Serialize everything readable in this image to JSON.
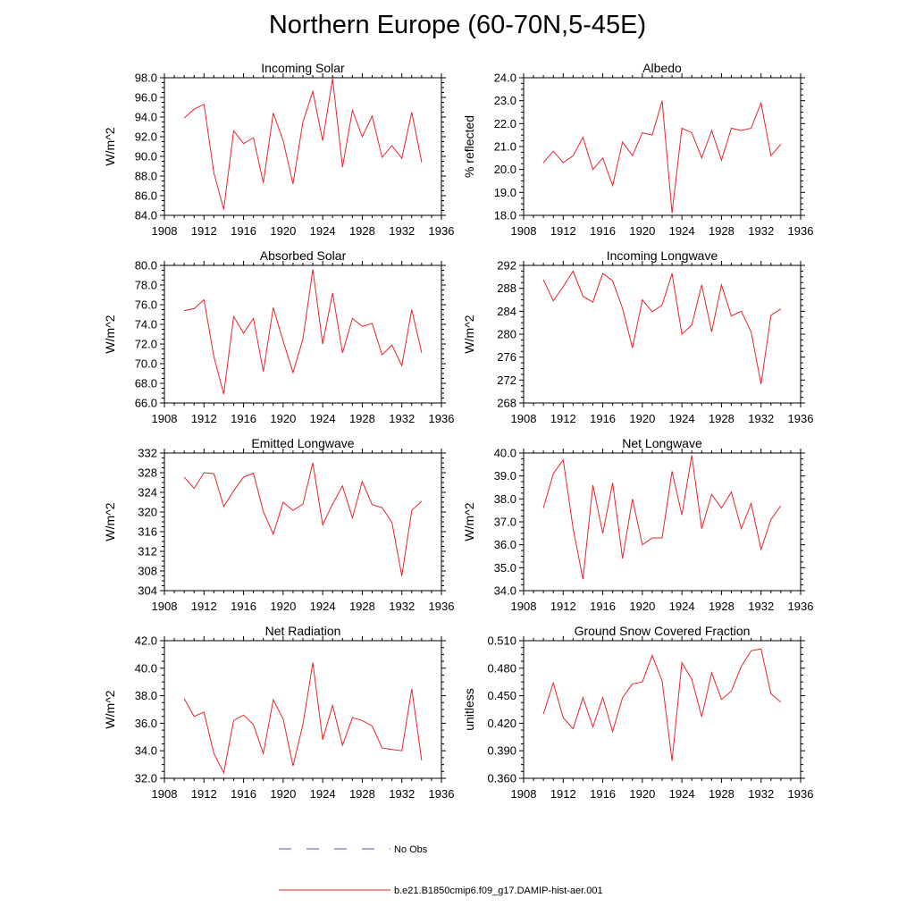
{
  "title": "Northern Europe (60-70N,5-45E)",
  "chart_data": [
    {
      "type": "line",
      "title": "Incoming Solar",
      "ylabel": "W/m^2",
      "xlim": [
        1908,
        1936
      ],
      "ylim": [
        84.0,
        98.0
      ],
      "xticks": [
        "1908",
        "1912",
        "1916",
        "1920",
        "1924",
        "1928",
        "1932",
        "1936"
      ],
      "yticks": [
        "84.0",
        "86.0",
        "88.0",
        "90.0",
        "92.0",
        "94.0",
        "96.0",
        "98.0"
      ],
      "x": [
        1910,
        1911,
        1912,
        1913,
        1914,
        1915,
        1916,
        1917,
        1918,
        1919,
        1920,
        1921,
        1922,
        1923,
        1924,
        1925,
        1926,
        1927,
        1928,
        1929,
        1930,
        1931,
        1932,
        1933,
        1934
      ],
      "series": [
        {
          "values": [
            93.9,
            94.8,
            95.3,
            88.3,
            84.6,
            92.6,
            91.3,
            91.9,
            87.3,
            94.4,
            91.6,
            87.2,
            93.5,
            96.6,
            91.6,
            97.9,
            88.9,
            94.7,
            92.0,
            94.1,
            89.9,
            91.1,
            89.8,
            94.5,
            89.4
          ]
        }
      ]
    },
    {
      "type": "line",
      "title": "Albedo",
      "ylabel": "% reflected",
      "xlim": [
        1908,
        1936
      ],
      "ylim": [
        18.0,
        24.0
      ],
      "xticks": [
        "1908",
        "1912",
        "1916",
        "1920",
        "1924",
        "1928",
        "1932",
        "1936"
      ],
      "yticks": [
        "18.0",
        "19.0",
        "20.0",
        "21.0",
        "22.0",
        "23.0",
        "24.0"
      ],
      "x": [
        1910,
        1911,
        1912,
        1913,
        1914,
        1915,
        1916,
        1917,
        1918,
        1919,
        1920,
        1921,
        1922,
        1923,
        1924,
        1925,
        1926,
        1927,
        1928,
        1929,
        1930,
        1931,
        1932,
        1933,
        1934
      ],
      "series": [
        {
          "values": [
            20.3,
            20.8,
            20.3,
            20.6,
            21.4,
            20.0,
            20.5,
            19.3,
            21.2,
            20.6,
            21.6,
            21.5,
            23.0,
            18.1,
            21.8,
            21.6,
            20.5,
            21.7,
            20.4,
            21.8,
            21.7,
            21.8,
            22.9,
            20.6,
            21.1
          ]
        }
      ]
    },
    {
      "type": "line",
      "title": "Absorbed Solar",
      "ylabel": "W/m^2",
      "xlim": [
        1908,
        1936
      ],
      "ylim": [
        66.0,
        80.0
      ],
      "xticks": [
        "1908",
        "1912",
        "1916",
        "1920",
        "1924",
        "1928",
        "1932",
        "1936"
      ],
      "yticks": [
        "66.0",
        "68.0",
        "70.0",
        "72.0",
        "74.0",
        "76.0",
        "78.0",
        "80.0"
      ],
      "x": [
        1910,
        1911,
        1912,
        1913,
        1914,
        1915,
        1916,
        1917,
        1918,
        1919,
        1920,
        1921,
        1922,
        1923,
        1924,
        1925,
        1926,
        1927,
        1928,
        1929,
        1930,
        1931,
        1932,
        1933,
        1934
      ],
      "series": [
        {
          "values": [
            75.4,
            75.6,
            76.5,
            70.7,
            66.9,
            74.8,
            73.1,
            74.6,
            69.2,
            75.7,
            72.3,
            69.1,
            72.5,
            79.6,
            72.0,
            77.2,
            71.1,
            74.6,
            73.8,
            74.1,
            70.9,
            71.9,
            69.8,
            75.5,
            71.1
          ]
        }
      ]
    },
    {
      "type": "line",
      "title": "Incoming Longwave",
      "ylabel": "W/m^2",
      "xlim": [
        1908,
        1936
      ],
      "ylim": [
        268,
        292
      ],
      "xticks": [
        "1908",
        "1912",
        "1916",
        "1920",
        "1924",
        "1928",
        "1932",
        "1936"
      ],
      "yticks": [
        "268",
        "272",
        "276",
        "280",
        "284",
        "288",
        "292"
      ],
      "x": [
        1910,
        1911,
        1912,
        1913,
        1914,
        1915,
        1916,
        1917,
        1918,
        1919,
        1920,
        1921,
        1922,
        1923,
        1924,
        1925,
        1926,
        1927,
        1928,
        1929,
        1930,
        1931,
        1932,
        1933,
        1934
      ],
      "series": [
        {
          "values": [
            289.5,
            285.8,
            288.3,
            291.0,
            286.6,
            285.6,
            290.6,
            289.3,
            284.5,
            277.6,
            286.0,
            283.9,
            285.1,
            290.6,
            280.0,
            281.6,
            288.6,
            280.4,
            288.6,
            283.2,
            284.0,
            280.4,
            271.3,
            283.3,
            284.4
          ]
        }
      ]
    },
    {
      "type": "line",
      "title": "Emitted Longwave",
      "ylabel": "W/m^2",
      "xlim": [
        1908,
        1936
      ],
      "ylim": [
        304,
        332
      ],
      "xticks": [
        "1908",
        "1912",
        "1916",
        "1920",
        "1924",
        "1928",
        "1932",
        "1936"
      ],
      "yticks": [
        "304",
        "308",
        "312",
        "316",
        "320",
        "324",
        "328",
        "332"
      ],
      "x": [
        1910,
        1911,
        1912,
        1913,
        1914,
        1915,
        1916,
        1917,
        1918,
        1919,
        1920,
        1921,
        1922,
        1923,
        1924,
        1925,
        1926,
        1927,
        1928,
        1929,
        1930,
        1931,
        1932,
        1933,
        1934
      ],
      "series": [
        {
          "values": [
            327.1,
            324.8,
            328.0,
            327.8,
            321.1,
            324.3,
            327.1,
            327.9,
            320.1,
            315.5,
            322.0,
            320.3,
            321.6,
            330.0,
            317.4,
            321.6,
            325.3,
            318.8,
            326.2,
            321.5,
            320.9,
            317.9,
            307.0,
            320.3,
            322.2
          ]
        }
      ]
    },
    {
      "type": "line",
      "title": "Net Longwave",
      "ylabel": "W/m^2",
      "xlim": [
        1908,
        1936
      ],
      "ylim": [
        34.0,
        40.0
      ],
      "xticks": [
        "1908",
        "1912",
        "1916",
        "1920",
        "1924",
        "1928",
        "1932",
        "1936"
      ],
      "yticks": [
        "34.0",
        "35.0",
        "36.0",
        "37.0",
        "38.0",
        "39.0",
        "40.0"
      ],
      "x": [
        1910,
        1911,
        1912,
        1913,
        1914,
        1915,
        1916,
        1917,
        1918,
        1919,
        1920,
        1921,
        1922,
        1923,
        1924,
        1925,
        1926,
        1927,
        1928,
        1929,
        1930,
        1931,
        1932,
        1933,
        1934
      ],
      "series": [
        {
          "values": [
            37.6,
            39.1,
            39.7,
            36.7,
            34.5,
            38.6,
            36.5,
            38.7,
            35.4,
            38.0,
            36.0,
            36.3,
            36.3,
            39.2,
            37.3,
            39.9,
            36.7,
            38.2,
            37.6,
            38.3,
            36.7,
            37.8,
            35.8,
            37.1,
            37.7
          ]
        }
      ]
    },
    {
      "type": "line",
      "title": "Net Radiation",
      "ylabel": "W/m^2",
      "xlim": [
        1908,
        1936
      ],
      "ylim": [
        32.0,
        42.0
      ],
      "xticks": [
        "1908",
        "1912",
        "1916",
        "1920",
        "1924",
        "1928",
        "1932",
        "1936"
      ],
      "yticks": [
        "32.0",
        "34.0",
        "36.0",
        "38.0",
        "40.0",
        "42.0"
      ],
      "x": [
        1910,
        1911,
        1912,
        1913,
        1914,
        1915,
        1916,
        1917,
        1918,
        1919,
        1920,
        1921,
        1922,
        1923,
        1924,
        1925,
        1926,
        1927,
        1928,
        1929,
        1930,
        1931,
        1932,
        1933,
        1934
      ],
      "series": [
        {
          "values": [
            37.8,
            36.5,
            36.8,
            33.8,
            32.4,
            36.2,
            36.6,
            35.9,
            33.8,
            37.7,
            36.3,
            32.9,
            35.9,
            40.4,
            34.8,
            37.3,
            34.4,
            36.4,
            36.2,
            35.8,
            34.2,
            34.1,
            34.0,
            38.5,
            33.3
          ]
        }
      ]
    },
    {
      "type": "line",
      "title": "Ground Snow Covered Fraction",
      "ylabel": "unitless",
      "xlim": [
        1908,
        1936
      ],
      "ylim": [
        0.36,
        0.51
      ],
      "xticks": [
        "1908",
        "1912",
        "1916",
        "1920",
        "1924",
        "1928",
        "1932",
        "1936"
      ],
      "yticks": [
        "0.360",
        "0.390",
        "0.420",
        "0.450",
        "0.480",
        "0.510"
      ],
      "x": [
        1910,
        1911,
        1912,
        1913,
        1914,
        1915,
        1916,
        1917,
        1918,
        1919,
        1920,
        1921,
        1922,
        1923,
        1924,
        1925,
        1926,
        1927,
        1928,
        1929,
        1930,
        1931,
        1932,
        1933,
        1934
      ],
      "series": [
        {
          "values": [
            0.43,
            0.464,
            0.426,
            0.414,
            0.448,
            0.416,
            0.448,
            0.411,
            0.448,
            0.463,
            0.465,
            0.494,
            0.466,
            0.379,
            0.486,
            0.468,
            0.427,
            0.475,
            0.446,
            0.455,
            0.482,
            0.499,
            0.501,
            0.452,
            0.443
          ]
        }
      ]
    }
  ],
  "legend": {
    "entries": [
      {
        "label": "No Obs",
        "color": "#5a5aa8",
        "dash": true
      },
      {
        "label": "b.e21.B1850cmip6.f09_g17.DAMIP-hist-aer.001",
        "color": "#e8252a",
        "dash": false
      }
    ]
  }
}
